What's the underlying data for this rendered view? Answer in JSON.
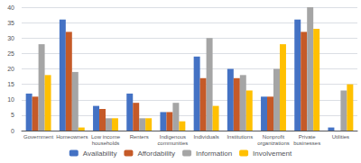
{
  "chart_data": {
    "type": "bar",
    "categories": [
      "Government",
      "Homeowners",
      "Low income\nhouseholds",
      "Renters",
      "Indigenous\ncommunities",
      "Individuals",
      "Institutions",
      "Nonprofit\norganizations",
      "Private\nbusinesses",
      "Utilities"
    ],
    "series": [
      {
        "name": "Availability",
        "color": "#4472C4",
        "values": [
          12,
          36,
          8,
          12,
          6,
          24,
          20,
          11,
          36,
          1
        ]
      },
      {
        "name": "Affordability",
        "color": "#C55A28",
        "values": [
          11,
          32,
          7,
          9,
          6,
          17,
          17,
          11,
          32,
          0
        ]
      },
      {
        "name": "Information",
        "color": "#A5A5A5",
        "values": [
          28,
          19,
          4,
          4,
          9,
          30,
          18,
          20,
          40,
          13
        ]
      },
      {
        "name": "Involvement",
        "color": "#FFC000",
        "values": [
          18,
          1,
          4,
          4,
          3,
          8,
          13,
          28,
          33,
          15
        ]
      }
    ],
    "ylim": [
      0,
      40
    ],
    "yticks": [
      0,
      5,
      10,
      15,
      20,
      25,
      30,
      35,
      40
    ],
    "grid": true,
    "legend": "bottom"
  }
}
